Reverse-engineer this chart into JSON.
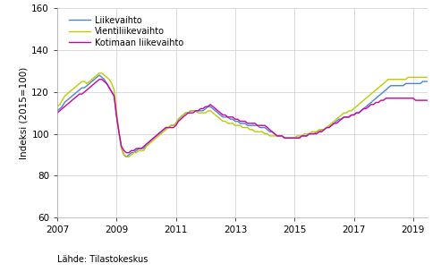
{
  "title": "",
  "ylabel": "Indeksi (2015=100)",
  "xlabel": "",
  "source": "Lähde: Tilastokeskus",
  "ylim": [
    60,
    160
  ],
  "yticks": [
    60,
    80,
    100,
    120,
    140,
    160
  ],
  "xtick_years": [
    2007,
    2009,
    2011,
    2013,
    2015,
    2017,
    2019
  ],
  "legend_labels": [
    "Liikevaihto",
    "Vientiliikevaihto",
    "Kotimaan liikevaihto"
  ],
  "colors": [
    "#4488cc",
    "#bbcc00",
    "#cc00aa"
  ],
  "line_width": 1.0,
  "background_color": "#ffffff",
  "grid_color": "#cccccc",
  "liikevaihto": [
    111,
    112,
    113,
    115,
    116,
    117,
    118,
    119,
    120,
    121,
    122,
    122,
    123,
    124,
    125,
    126,
    127,
    128,
    127,
    126,
    124,
    122,
    120,
    118,
    108,
    100,
    93,
    90,
    89,
    90,
    91,
    91,
    92,
    93,
    93,
    93,
    95,
    96,
    97,
    98,
    99,
    100,
    101,
    102,
    103,
    103,
    104,
    104,
    105,
    107,
    108,
    109,
    110,
    110,
    111,
    111,
    111,
    111,
    111,
    111,
    112,
    113,
    113,
    112,
    111,
    110,
    109,
    108,
    108,
    108,
    107,
    107,
    106,
    106,
    105,
    105,
    105,
    104,
    104,
    104,
    104,
    104,
    103,
    103,
    103,
    102,
    101,
    101,
    100,
    99,
    99,
    99,
    98,
    98,
    98,
    98,
    98,
    98,
    98,
    99,
    99,
    99,
    100,
    100,
    100,
    101,
    101,
    102,
    102,
    103,
    103,
    104,
    105,
    106,
    107,
    107,
    108,
    108,
    108,
    109,
    109,
    110,
    110,
    111,
    112,
    113,
    114,
    115,
    116,
    117,
    118,
    119,
    120,
    121,
    122,
    123,
    123,
    123,
    123,
    123,
    123,
    124,
    124,
    124,
    124,
    124,
    124,
    124,
    125,
    125,
    125,
    125
  ],
  "vientiliikevaihto": [
    113,
    114,
    116,
    118,
    119,
    120,
    121,
    122,
    123,
    124,
    125,
    125,
    124,
    125,
    126,
    127,
    128,
    129,
    129,
    128,
    127,
    126,
    124,
    121,
    110,
    100,
    93,
    90,
    89,
    89,
    90,
    91,
    91,
    92,
    92,
    92,
    94,
    95,
    96,
    97,
    98,
    99,
    100,
    101,
    102,
    103,
    104,
    104,
    105,
    107,
    108,
    109,
    110,
    110,
    111,
    111,
    111,
    110,
    110,
    110,
    110,
    111,
    111,
    110,
    109,
    108,
    107,
    106,
    106,
    105,
    105,
    105,
    104,
    104,
    104,
    103,
    103,
    103,
    102,
    102,
    101,
    101,
    101,
    101,
    100,
    100,
    99,
    99,
    99,
    99,
    99,
    99,
    98,
    98,
    98,
    98,
    98,
    99,
    99,
    99,
    100,
    100,
    100,
    101,
    101,
    101,
    102,
    102,
    102,
    103,
    104,
    105,
    106,
    107,
    108,
    109,
    110,
    110,
    111,
    111,
    112,
    113,
    114,
    115,
    116,
    117,
    118,
    119,
    120,
    121,
    122,
    123,
    124,
    125,
    126,
    126,
    126,
    126,
    126,
    126,
    126,
    126,
    127,
    127,
    127,
    127,
    127,
    127,
    127,
    127,
    127,
    125
  ],
  "kotimaan_liikevaihto": [
    110,
    111,
    112,
    113,
    114,
    115,
    116,
    117,
    118,
    119,
    119,
    120,
    121,
    122,
    123,
    124,
    125,
    126,
    126,
    125,
    124,
    122,
    120,
    118,
    108,
    100,
    94,
    92,
    91,
    91,
    92,
    92,
    93,
    93,
    93,
    94,
    95,
    96,
    97,
    98,
    99,
    100,
    101,
    102,
    103,
    103,
    103,
    103,
    104,
    106,
    107,
    108,
    109,
    110,
    110,
    110,
    111,
    111,
    112,
    112,
    113,
    113,
    114,
    113,
    112,
    111,
    110,
    109,
    109,
    108,
    108,
    108,
    107,
    107,
    106,
    106,
    106,
    105,
    105,
    105,
    105,
    104,
    104,
    104,
    104,
    103,
    102,
    101,
    100,
    99,
    99,
    99,
    98,
    98,
    98,
    98,
    98,
    98,
    98,
    99,
    99,
    99,
    100,
    100,
    100,
    100,
    101,
    101,
    102,
    103,
    103,
    104,
    105,
    105,
    106,
    107,
    108,
    108,
    108,
    109,
    109,
    110,
    110,
    111,
    112,
    112,
    113,
    114,
    114,
    115,
    115,
    116,
    116,
    117,
    117,
    117,
    117,
    117,
    117,
    117,
    117,
    117,
    117,
    117,
    117,
    116,
    116,
    116,
    116,
    116,
    116,
    115
  ]
}
